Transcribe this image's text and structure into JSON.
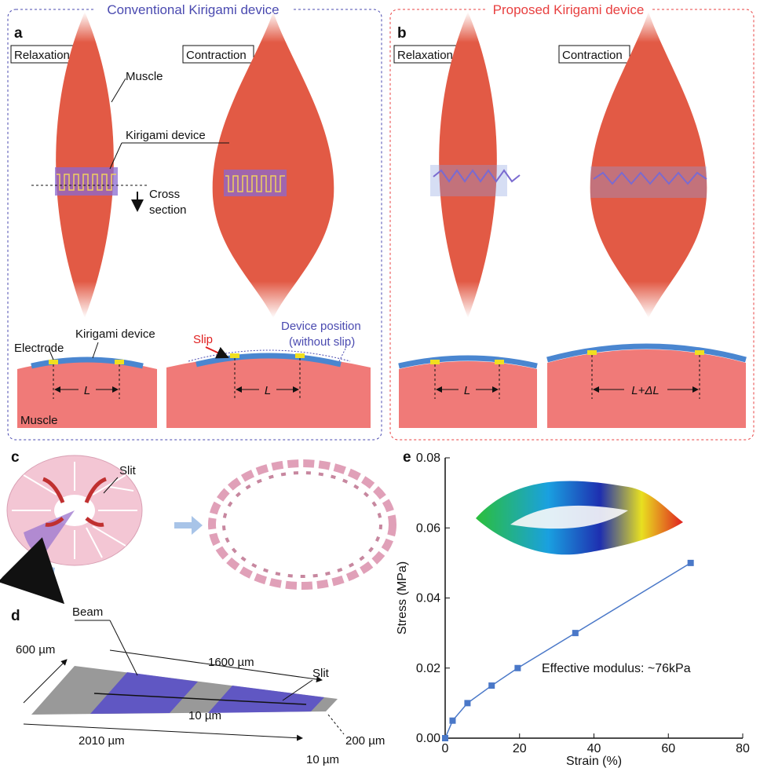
{
  "figure": {
    "panel_a": {
      "letter": "a",
      "title": "Conventional Kirigami device",
      "relaxation": "Relaxation",
      "contraction": "Contraction",
      "muscle_label": "Muscle",
      "device_label": "Kirigami device",
      "cross_section": [
        "Cross",
        "section"
      ],
      "electrode": "Electrode",
      "device_label_2": "Kirigami device",
      "slip": "Slip",
      "device_position": [
        "Device position",
        "(without slip)"
      ],
      "length_1": "L",
      "length_2": "L",
      "muscle_bottom": "Muscle"
    },
    "panel_b": {
      "letter": "b",
      "title": "Proposed Kirigami device",
      "relaxation": "Relaxation",
      "contraction": "Contraction",
      "length_1": "L",
      "length_2": "L+ΔL"
    },
    "panel_c": {
      "letter": "c",
      "slit": "Slit"
    },
    "panel_d": {
      "letter": "d",
      "beam": "Beam",
      "width": "600 µm",
      "beam_length": "1600 µm",
      "slit": "Slit",
      "slit_width": "10 µm",
      "total_length": "2010 µm",
      "end_width": "200 µm",
      "end_gap": "10 µm"
    },
    "panel_e": {
      "letter": "e"
    }
  },
  "chart_data": {
    "type": "line",
    "x": [
      0,
      2,
      6,
      12.5,
      19.5,
      35,
      66
    ],
    "series": [
      {
        "color": "#4a78c8",
        "values": [
          0,
          0.005,
          0.01,
          0.015,
          0.02,
          0.03,
          0.05
        ]
      }
    ],
    "xlabel": "Strain (%)",
    "ylabel": "Stress (MPa)",
    "annotation": "Effective modulus: ~76kPa",
    "xlim": [
      0,
      80
    ],
    "xticks": [
      0,
      20,
      40,
      60,
      80
    ],
    "ylim": [
      0,
      0.08
    ],
    "yticks": [
      {
        "value": 0,
        "label": "0.00"
      },
      0.02,
      0.04,
      0.06,
      0.08
    ]
  }
}
